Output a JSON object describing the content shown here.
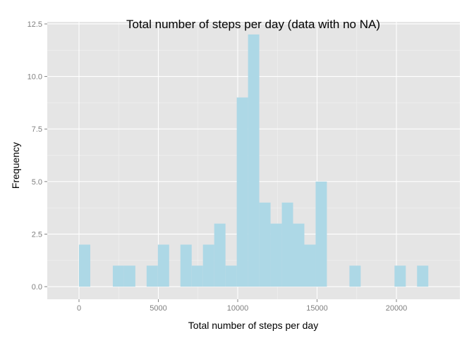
{
  "chart_data": {
    "type": "bar",
    "title": "Total number of steps per day (data with no NA)",
    "xlabel": "Total number of steps per day",
    "ylabel": "Frequency",
    "xlim": [
      -2000,
      24000
    ],
    "ylim": [
      -0.6,
      12.6
    ],
    "bin_width": 710,
    "xticks": [
      0,
      5000,
      10000,
      15000,
      20000
    ],
    "xtick_labels": [
      "0",
      "5000",
      "10000",
      "15000",
      "20000"
    ],
    "yticks": [
      0,
      2.5,
      5,
      7.5,
      10,
      12.5
    ],
    "ytick_labels": [
      "0.0",
      "2.5",
      "5.0",
      "7.5",
      "10.0",
      "12.5"
    ],
    "bins": [
      {
        "x": 355,
        "count": 2
      },
      {
        "x": 1065,
        "count": 0
      },
      {
        "x": 1775,
        "count": 0
      },
      {
        "x": 2485,
        "count": 1
      },
      {
        "x": 3195,
        "count": 1
      },
      {
        "x": 3905,
        "count": 0
      },
      {
        "x": 4615,
        "count": 1
      },
      {
        "x": 5325,
        "count": 2
      },
      {
        "x": 6035,
        "count": 0
      },
      {
        "x": 6745,
        "count": 2
      },
      {
        "x": 7455,
        "count": 1
      },
      {
        "x": 8165,
        "count": 2
      },
      {
        "x": 8875,
        "count": 3
      },
      {
        "x": 9585,
        "count": 1
      },
      {
        "x": 10295,
        "count": 9
      },
      {
        "x": 11005,
        "count": 12
      },
      {
        "x": 11715,
        "count": 4
      },
      {
        "x": 12425,
        "count": 3
      },
      {
        "x": 13135,
        "count": 4
      },
      {
        "x": 13845,
        "count": 3
      },
      {
        "x": 14555,
        "count": 2
      },
      {
        "x": 15265,
        "count": 5
      },
      {
        "x": 15975,
        "count": 0
      },
      {
        "x": 16685,
        "count": 0
      },
      {
        "x": 17395,
        "count": 1
      },
      {
        "x": 18105,
        "count": 0
      },
      {
        "x": 18815,
        "count": 0
      },
      {
        "x": 19525,
        "count": 0
      },
      {
        "x": 20235,
        "count": 1
      },
      {
        "x": 20945,
        "count": 0
      },
      {
        "x": 21655,
        "count": 1
      }
    ],
    "grid": true,
    "colors": {
      "bar_fill": "#add8e6",
      "panel_background": "#e5e5e5",
      "grid_major": "#ffffff",
      "grid_minor": "#f2f2f2",
      "tick_label": "#7f7f7f"
    }
  }
}
